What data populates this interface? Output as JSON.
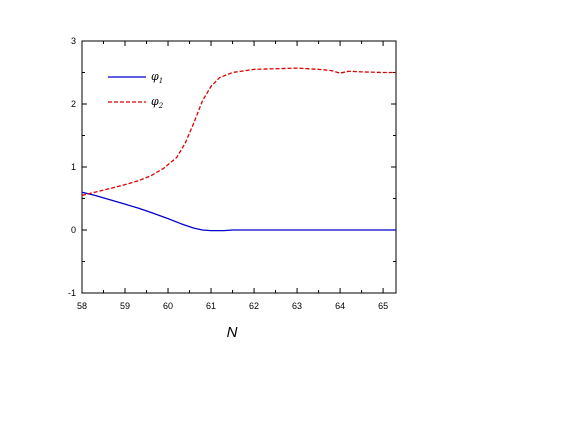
{
  "chart_data": {
    "type": "line",
    "xlabel": "N",
    "ylabel": "",
    "xlim": [
      58,
      65.3
    ],
    "ylim": [
      -1,
      3
    ],
    "x_ticks": [
      58,
      59,
      60,
      61,
      62,
      63,
      64,
      65
    ],
    "y_ticks": [
      -1,
      0,
      1,
      2,
      3
    ],
    "grid": false,
    "legend": "top-left",
    "series": [
      {
        "name": "φ",
        "subscript": "1",
        "color": "#0000cc",
        "dash": "solid",
        "points": [
          [
            58.0,
            0.6
          ],
          [
            58.3,
            0.55
          ],
          [
            58.6,
            0.49
          ],
          [
            59.0,
            0.41
          ],
          [
            59.3,
            0.35
          ],
          [
            59.6,
            0.28
          ],
          [
            60.0,
            0.18
          ],
          [
            60.3,
            0.1
          ],
          [
            60.6,
            0.03
          ],
          [
            60.8,
            0.0
          ],
          [
            61.0,
            -0.01
          ],
          [
            61.3,
            -0.01
          ],
          [
            61.5,
            0.0
          ],
          [
            62.0,
            0.0
          ],
          [
            63.0,
            0.0
          ],
          [
            64.0,
            0.0
          ],
          [
            65.3,
            0.0
          ]
        ]
      },
      {
        "name": "φ",
        "subscript": "2",
        "color": "#dd0000",
        "dash": "dashed",
        "points": [
          [
            58.0,
            0.55
          ],
          [
            58.3,
            0.6
          ],
          [
            58.6,
            0.65
          ],
          [
            59.0,
            0.72
          ],
          [
            59.3,
            0.78
          ],
          [
            59.6,
            0.86
          ],
          [
            59.9,
            0.98
          ],
          [
            60.2,
            1.15
          ],
          [
            60.4,
            1.38
          ],
          [
            60.6,
            1.7
          ],
          [
            60.8,
            2.05
          ],
          [
            61.0,
            2.28
          ],
          [
            61.2,
            2.42
          ],
          [
            61.5,
            2.5
          ],
          [
            62.0,
            2.55
          ],
          [
            62.5,
            2.56
          ],
          [
            63.0,
            2.57
          ],
          [
            63.5,
            2.55
          ],
          [
            63.8,
            2.53
          ],
          [
            64.0,
            2.49
          ],
          [
            64.2,
            2.52
          ],
          [
            64.5,
            2.51
          ],
          [
            65.0,
            2.5
          ],
          [
            65.3,
            2.5
          ]
        ]
      }
    ]
  }
}
